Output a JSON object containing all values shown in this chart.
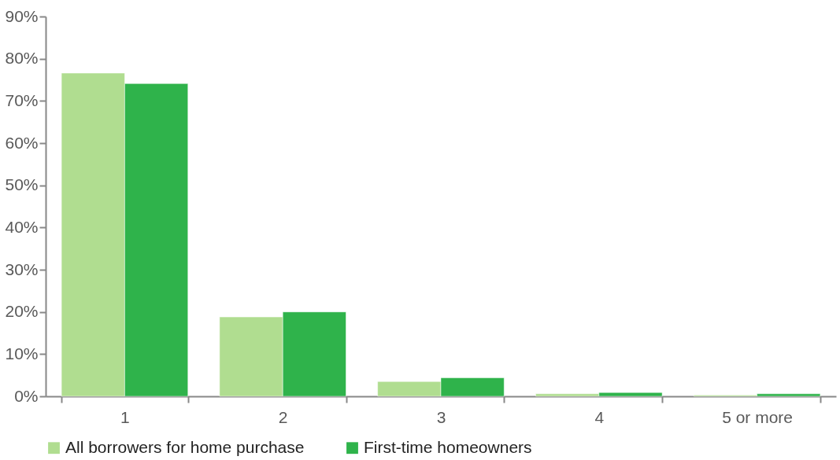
{
  "chart_data": {
    "type": "bar",
    "categories": [
      "1",
      "2",
      "3",
      "4",
      "5 or more"
    ],
    "series": [
      {
        "name": "All borrowers for home purchase",
        "color": "#b0dd90",
        "values": [
          76.6,
          18.8,
          3.5,
          0.6,
          0.3
        ]
      },
      {
        "name": "First-time homeowners",
        "color": "#2fb34b",
        "values": [
          74.1,
          20.0,
          4.4,
          0.9,
          0.6
        ]
      }
    ],
    "ylim": [
      0,
      90
    ],
    "yticks": [
      {
        "value": 0,
        "label": "0%"
      },
      {
        "value": 10,
        "label": "10%"
      },
      {
        "value": 20,
        "label": "20%"
      },
      {
        "value": 30,
        "label": "30%"
      },
      {
        "value": 40,
        "label": "40%"
      },
      {
        "value": 50,
        "label": "50%"
      },
      {
        "value": 60,
        "label": "60%"
      },
      {
        "value": 70,
        "label": "70%"
      },
      {
        "value": 80,
        "label": "80%"
      },
      {
        "value": 90,
        "label": "90%"
      }
    ],
    "grid": false,
    "legend": "bottom"
  }
}
